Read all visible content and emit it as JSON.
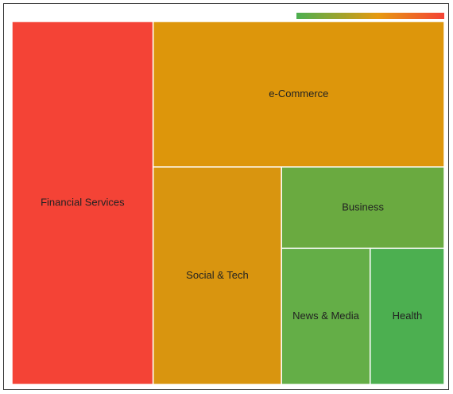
{
  "chart_data": {
    "type": "treemap",
    "title": "",
    "color_scale": {
      "low": "#4caf50",
      "mid": "#e69a10",
      "high": "#f44336"
    },
    "nodes": [
      {
        "name": "Financial Services",
        "value": 90.5,
        "color_value": 1.0,
        "color": "#f44336"
      },
      {
        "name": "e-Commerce",
        "value": 74.8,
        "color_value": 0.58,
        "color": "#dd960b"
      },
      {
        "name": "Social & Tech",
        "value": 49.3,
        "color_value": 0.55,
        "color": "#d9950f"
      },
      {
        "name": "Business",
        "value": 23.4,
        "color_value": 0.22,
        "color": "#6aaa40"
      },
      {
        "name": "News & Media",
        "value": 21.3,
        "color_value": 0.18,
        "color": "#64ae47"
      },
      {
        "name": "Health",
        "value": 17.8,
        "color_value": 0.0,
        "color": "#4caf50"
      }
    ]
  }
}
